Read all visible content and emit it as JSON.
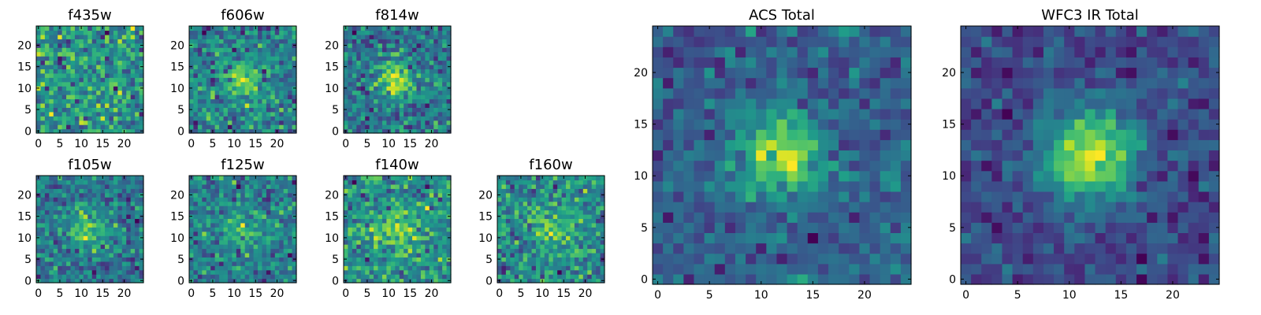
{
  "figure": {
    "description_colormap": "viridis",
    "colors": {
      "low": "#440154",
      "mid": "#21918c",
      "high": "#fde725",
      "axis": "#000000"
    }
  },
  "chart_data": [
    {
      "type": "heatmap",
      "title": "f435w",
      "grid": [
        25,
        25
      ],
      "xlim": [
        -0.5,
        24.5
      ],
      "ylim": [
        -0.5,
        24.5
      ],
      "xticks": [
        0,
        5,
        10,
        15,
        20
      ],
      "yticks": [
        0,
        5,
        10,
        15,
        20
      ],
      "source_amplitude": 0.05,
      "noise": 1.0,
      "seed": 11
    },
    {
      "type": "heatmap",
      "title": "f606w",
      "grid": [
        25,
        25
      ],
      "xlim": [
        -0.5,
        24.5
      ],
      "ylim": [
        -0.5,
        24.5
      ],
      "xticks": [
        0,
        5,
        10,
        15,
        20
      ],
      "yticks": [
        0,
        5,
        10,
        15,
        20
      ],
      "source_amplitude": 0.55,
      "noise": 1.0,
      "seed": 23
    },
    {
      "type": "heatmap",
      "title": "f814w",
      "grid": [
        25,
        25
      ],
      "xlim": [
        -0.5,
        24.5
      ],
      "ylim": [
        -0.5,
        24.5
      ],
      "xticks": [
        0,
        5,
        10,
        15,
        20
      ],
      "yticks": [
        0,
        5,
        10,
        15,
        20
      ],
      "source_amplitude": 0.65,
      "noise": 1.0,
      "seed": 37
    },
    {
      "type": "heatmap",
      "title": "f105w",
      "grid": [
        25,
        25
      ],
      "xlim": [
        -0.5,
        24.5
      ],
      "ylim": [
        -0.5,
        24.5
      ],
      "xticks": [
        0,
        5,
        10,
        15,
        20
      ],
      "yticks": [
        0,
        5,
        10,
        15,
        20
      ],
      "source_amplitude": 0.6,
      "noise": 1.0,
      "seed": 41
    },
    {
      "type": "heatmap",
      "title": "f125w",
      "grid": [
        25,
        25
      ],
      "xlim": [
        -0.5,
        24.5
      ],
      "ylim": [
        -0.5,
        24.5
      ],
      "xticks": [
        0,
        5,
        10,
        15,
        20
      ],
      "yticks": [
        0,
        5,
        10,
        15,
        20
      ],
      "source_amplitude": 0.35,
      "noise": 1.0,
      "seed": 53
    },
    {
      "type": "heatmap",
      "title": "f140w",
      "grid": [
        25,
        25
      ],
      "xlim": [
        -0.5,
        24.5
      ],
      "ylim": [
        -0.5,
        24.5
      ],
      "xticks": [
        0,
        5,
        10,
        15,
        20
      ],
      "yticks": [
        0,
        5,
        10,
        15,
        20
      ],
      "source_amplitude": 0.4,
      "noise": 1.0,
      "seed": 67
    },
    {
      "type": "heatmap",
      "title": "f160w",
      "grid": [
        25,
        25
      ],
      "xlim": [
        -0.5,
        24.5
      ],
      "ylim": [
        -0.5,
        24.5
      ],
      "xticks": [
        0,
        5,
        10,
        15,
        20
      ],
      "yticks": [
        0,
        5,
        10,
        15,
        20
      ],
      "source_amplitude": 0.45,
      "noise": 1.0,
      "seed": 79
    },
    {
      "type": "heatmap",
      "title": "ACS Total",
      "grid": [
        25,
        25
      ],
      "xlim": [
        -0.5,
        24.5
      ],
      "ylim": [
        -0.5,
        24.5
      ],
      "xticks": [
        0,
        5,
        10,
        15,
        20
      ],
      "yticks": [
        0,
        5,
        10,
        15,
        20
      ],
      "source_amplitude": 0.9,
      "noise": 0.8,
      "seed": 97
    },
    {
      "type": "heatmap",
      "title": "WFC3 IR Total",
      "grid": [
        25,
        25
      ],
      "xlim": [
        -0.5,
        24.5
      ],
      "ylim": [
        -0.5,
        24.5
      ],
      "xticks": [
        0,
        5,
        10,
        15,
        20
      ],
      "yticks": [
        0,
        5,
        10,
        15,
        20
      ],
      "source_amplitude": 1.1,
      "noise": 0.6,
      "seed": 131
    }
  ]
}
